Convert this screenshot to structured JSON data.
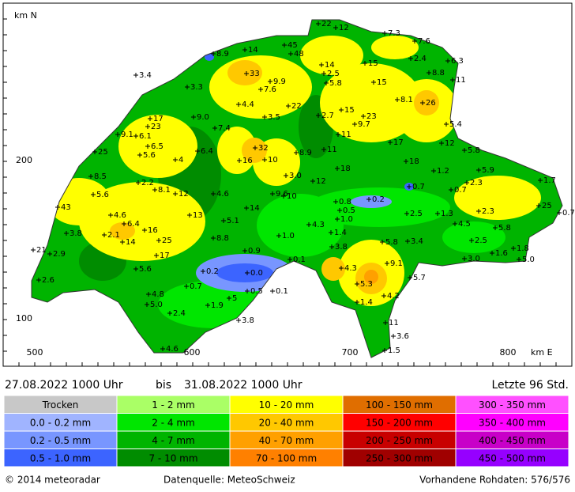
{
  "map": {
    "y_title": "km N",
    "y_ticks": [
      "200",
      "100"
    ],
    "x_ticks": [
      "500",
      "600",
      "700",
      "800"
    ],
    "x_title": "km E",
    "stations": [
      "22",
      "12",
      "7.3",
      "7.6",
      "45",
      "48",
      "14",
      "8.9",
      "14",
      "15",
      "2.4",
      "6.3",
      "8.8",
      "11",
      "2.5",
      "5.8",
      "15",
      "3.4",
      "33",
      "3.3",
      "9.9",
      "7.6",
      "26",
      "8.1",
      "4.4",
      "22",
      "15",
      "2.7",
      "23",
      "17",
      "9.0",
      "3.5",
      "9.7",
      "23",
      "7.4",
      "5.4",
      "11",
      "9.1",
      "6.1",
      "6.5",
      "32",
      "6.4",
      "17",
      "12",
      "25",
      "5.6",
      "8.9",
      "11",
      "5.8",
      "16",
      "10",
      "4",
      "18",
      "18",
      "5.9",
      "8.5",
      "3.0",
      "1.2",
      "2.2",
      "12",
      "2.3",
      "1.7",
      "5.6",
      "8.1",
      "12",
      "9.6",
      "10",
      "4.6",
      "0.8",
      "0.2",
      "0.7",
      "0.7",
      "43",
      "14",
      "0.5",
      "13",
      "2.5",
      "1.3",
      "2.3",
      "25",
      "0.7",
      "4.6",
      "5.1",
      "1.0",
      "4.3",
      "4.5",
      "5.8",
      "6.4",
      "16",
      "3.8",
      "2.1",
      "1.4",
      "14",
      "25",
      "8.8",
      "1.0",
      "5.8",
      "3.4",
      "2.5",
      "21",
      "2.9",
      "17",
      "0.9",
      "3.8",
      "1.6",
      "1.8",
      "3.0",
      "0.1",
      "9.1",
      "5.0",
      "5.6",
      "4.3",
      "0.2",
      "0.0",
      "5.7",
      "2.6",
      "0.7",
      "5.3",
      "0.5",
      "0.1",
      "4.8",
      "4.2",
      "5.0",
      "1.4",
      "1.9",
      "5",
      "2.4",
      "3.8",
      "11",
      "3.6",
      "4.6",
      "1.5"
    ]
  },
  "period": {
    "from": "27.08.2022  1000  Uhr",
    "word": "bis",
    "to": "31.08.2022  1000  Uhr",
    "range": "Letzte  96  Std."
  },
  "legend": [
    [
      {
        "label": "Trocken",
        "color": "#c8c8c8"
      },
      {
        "label": "0.0 - 0.2 mm",
        "color": "#a0b4ff"
      },
      {
        "label": "0.2 - 0.5 mm",
        "color": "#7896ff"
      },
      {
        "label": "0.5 - 1.0 mm",
        "color": "#3c64ff"
      }
    ],
    [
      {
        "label": "1 - 2 mm",
        "color": "#aaff66"
      },
      {
        "label": "2 - 4 mm",
        "color": "#00e600"
      },
      {
        "label": "4 - 7 mm",
        "color": "#00b400"
      },
      {
        "label": "7 - 10 mm",
        "color": "#008c00"
      }
    ],
    [
      {
        "label": "10 - 20 mm",
        "color": "#ffff00"
      },
      {
        "label": "20 - 40 mm",
        "color": "#ffc800"
      },
      {
        "label": "40 - 70 mm",
        "color": "#ffa000"
      },
      {
        "label": "70 - 100 mm",
        "color": "#ff8000"
      }
    ],
    [
      {
        "label": "100 - 150 mm",
        "color": "#e06e00"
      },
      {
        "label": "150 - 200 mm",
        "color": "#ff0000"
      },
      {
        "label": "200 - 250 mm",
        "color": "#c80000"
      },
      {
        "label": "250 - 300 mm",
        "color": "#a00000"
      }
    ],
    [
      {
        "label": "300 - 350 mm",
        "color": "#ff50ff"
      },
      {
        "label": "350 - 400 mm",
        "color": "#ff00ff"
      },
      {
        "label": "400 - 450 mm",
        "color": "#c800c8"
      },
      {
        "label": "450 - 500 mm",
        "color": "#9600ff"
      }
    ]
  ],
  "footer": {
    "copyright": "© 2014  meteoradar",
    "source": "Datenquelle: MeteoSchweiz",
    "raw": "Vorhandene Rohdaten: 576/576"
  }
}
